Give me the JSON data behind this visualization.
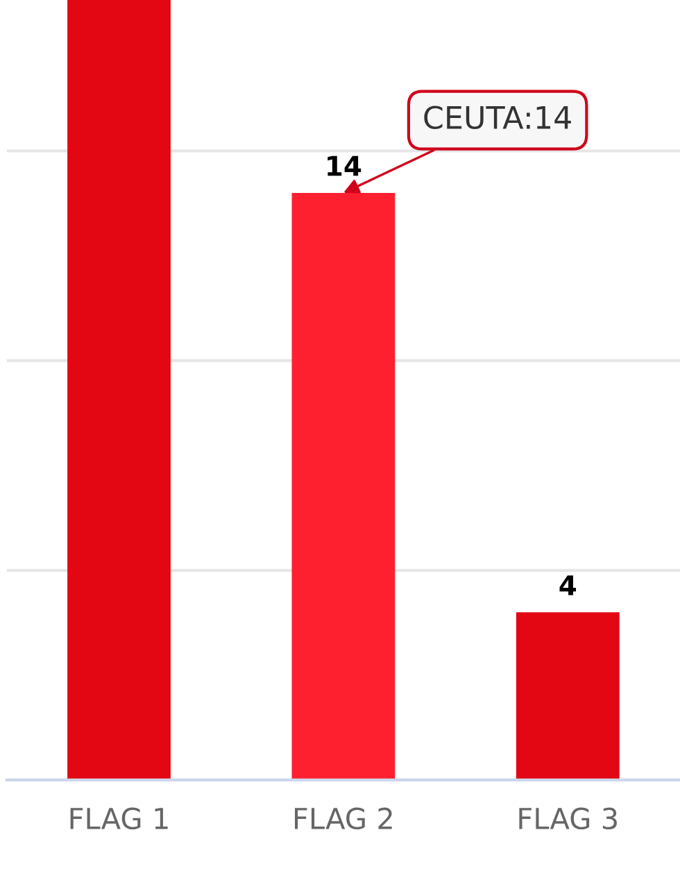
{
  "chart_data": {
    "type": "bar",
    "categories": [
      "FLAG 1",
      "FLAG 2",
      "FLAG 3"
    ],
    "values": [
      18.6,
      14,
      4
    ],
    "colors": [
      "#e30613",
      "#fe1f2f",
      "#e30613"
    ],
    "value_labels": [
      null,
      "14",
      "4"
    ],
    "ylim": [
      0,
      18.6
    ],
    "yticks": [
      {
        "value": 0,
        "label": null
      },
      {
        "value": 5,
        "label": null
      },
      {
        "value": 10,
        "label": null
      },
      {
        "value": 15,
        "label": null
      }
    ],
    "grid": "y",
    "tick_labels": "x",
    "annotations": [
      {
        "text": "CEUTA:14",
        "x": "FLAG 2",
        "y": 14
      }
    ]
  }
}
